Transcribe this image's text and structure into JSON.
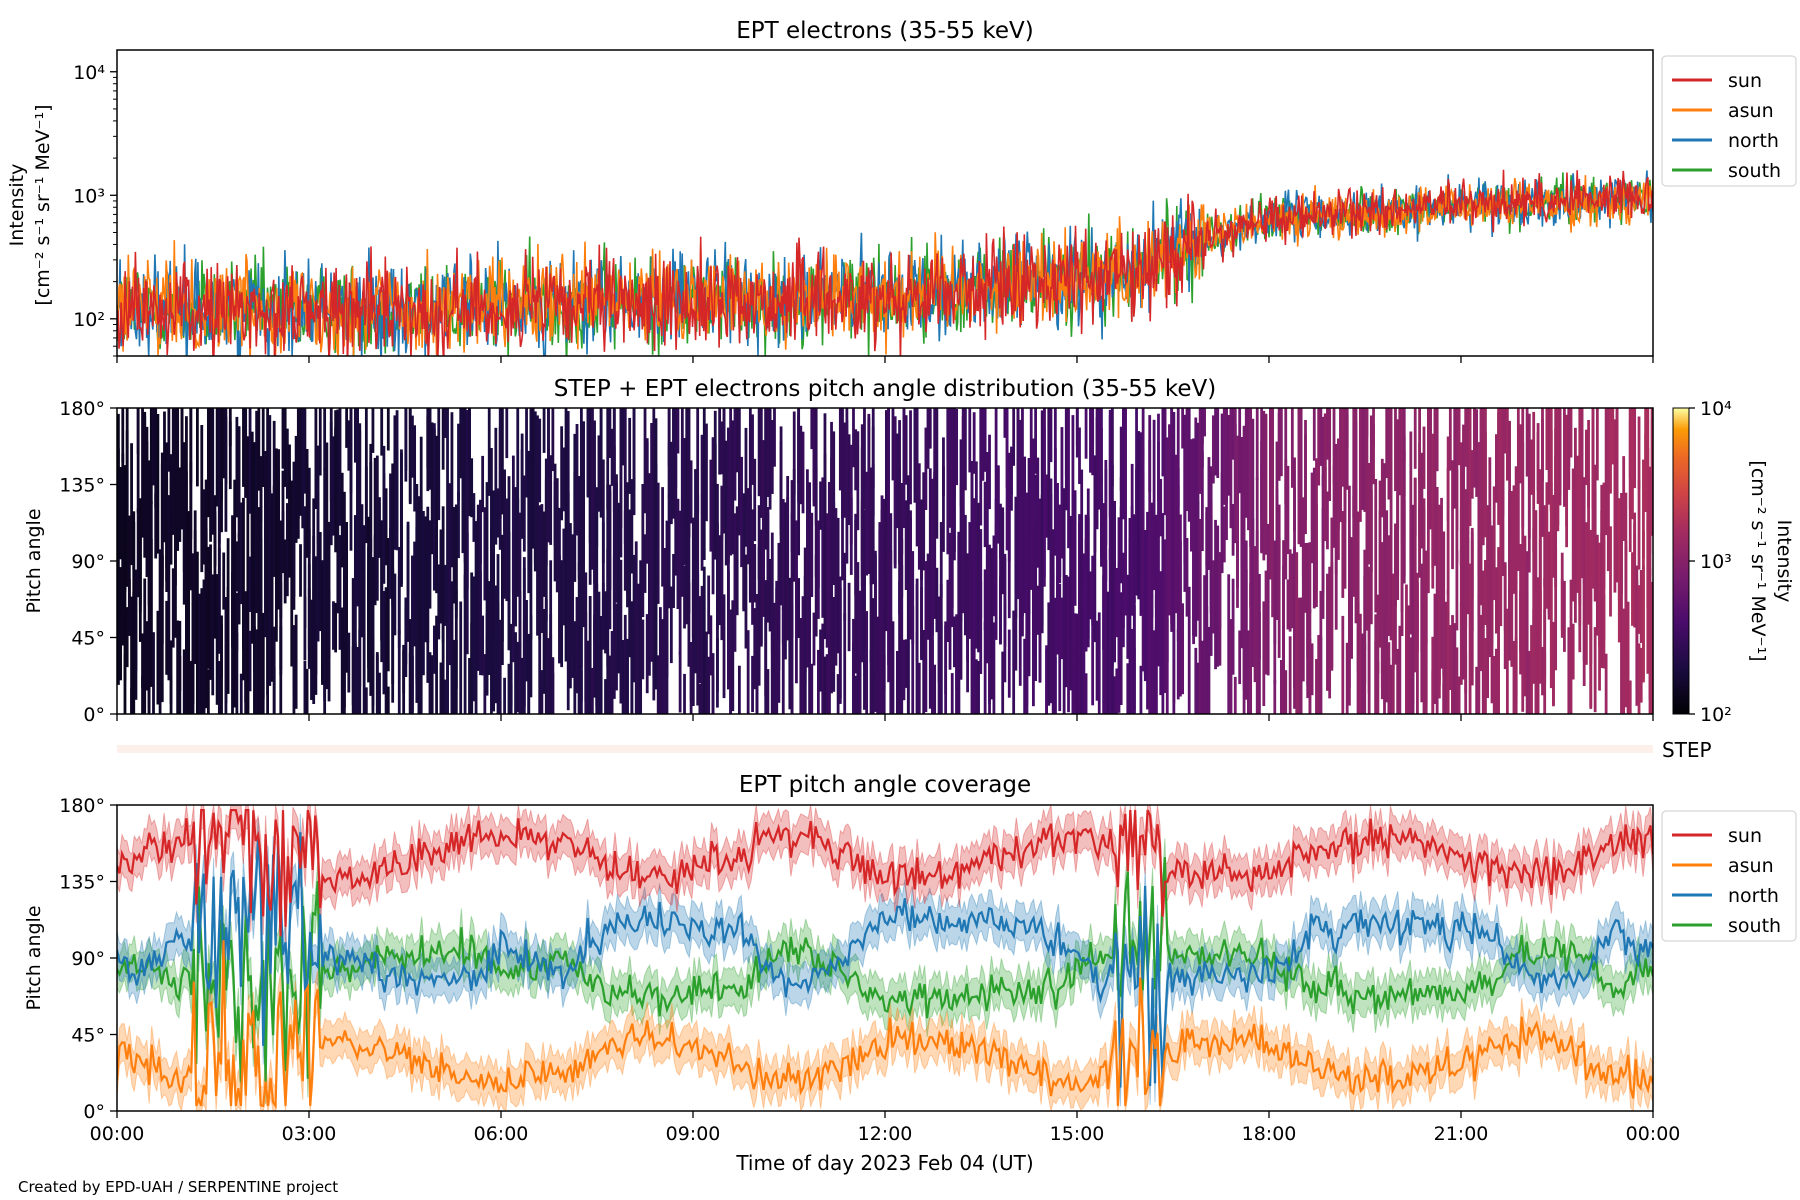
{
  "footer": "Created by EPD-UAH / SERPENTINE project",
  "xaxis": {
    "label": "Time of day 2023 Feb 04 (UT)",
    "ticks": [
      "00:00",
      "03:00",
      "06:00",
      "09:00",
      "12:00",
      "15:00",
      "18:00",
      "21:00",
      "00:00"
    ]
  },
  "colors": {
    "sun": "#d62728",
    "asun": "#ff7f0e",
    "north": "#1f77b4",
    "south": "#2ca02c",
    "step": "#fdf0ea"
  },
  "chart_data": [
    {
      "type": "line",
      "title": "EPT electrons (35-55 keV)",
      "ylabel": [
        "Intensity",
        "[cm⁻² s⁻¹ sr⁻¹ MeV⁻¹]"
      ],
      "yscale": "log",
      "ylim": [
        50,
        15000
      ],
      "yticks": [
        {
          "v": 100,
          "label": "10²"
        },
        {
          "v": 1000,
          "label": "10³"
        },
        {
          "v": 10000,
          "label": "10⁴"
        }
      ],
      "xlim": [
        0,
        24
      ],
      "legend": "outside-right",
      "series": [
        {
          "name": "sun",
          "trend_hours": [
            0,
            6,
            12,
            16,
            18,
            24
          ],
          "trend_values": [
            115,
            120,
            150,
            240,
            640,
            1030
          ]
        },
        {
          "name": "asun",
          "trend_hours": [
            0,
            6,
            12,
            16,
            18,
            24
          ],
          "trend_values": [
            125,
            128,
            160,
            250,
            630,
            950
          ]
        },
        {
          "name": "north",
          "trend_hours": [
            0,
            6,
            12,
            16,
            18,
            24
          ],
          "trend_values": [
            120,
            125,
            155,
            245,
            650,
            1000
          ]
        },
        {
          "name": "south",
          "trend_hours": [
            0,
            6,
            12,
            16,
            18,
            24
          ],
          "trend_values": [
            118,
            122,
            152,
            240,
            640,
            990
          ]
        }
      ]
    },
    {
      "type": "heatmap",
      "title": "STEP + EPT electrons pitch angle distribution (35-55 keV)",
      "ylabel": "Pitch angle",
      "ylim": [
        0,
        180
      ],
      "yticks": [
        "0°",
        "45°",
        "90°",
        "135°",
        "180°"
      ],
      "colorbar": {
        "label": [
          "Intensity",
          "[cm⁻² s⁻¹ sr⁻¹ MeV⁻¹]"
        ],
        "scale": "log",
        "range": [
          100,
          10000
        ],
        "ticks": [
          "10²",
          "10³",
          "10⁴"
        ]
      }
    },
    {
      "type": "line",
      "title": "STEP",
      "ylim": [
        0,
        1
      ]
    },
    {
      "type": "line",
      "title": "EPT pitch angle coverage",
      "ylabel": "Pitch angle",
      "ylim": [
        0,
        180
      ],
      "yticks": [
        "0°",
        "45°",
        "90°",
        "135°",
        "180°"
      ],
      "legend": "outside-right",
      "series": [
        {
          "name": "sun",
          "approx_mean_deg": 150
        },
        {
          "name": "asun",
          "approx_mean_deg": 30
        },
        {
          "name": "north",
          "approx_mean_deg": 95
        },
        {
          "name": "south",
          "approx_mean_deg": 80
        }
      ]
    }
  ]
}
